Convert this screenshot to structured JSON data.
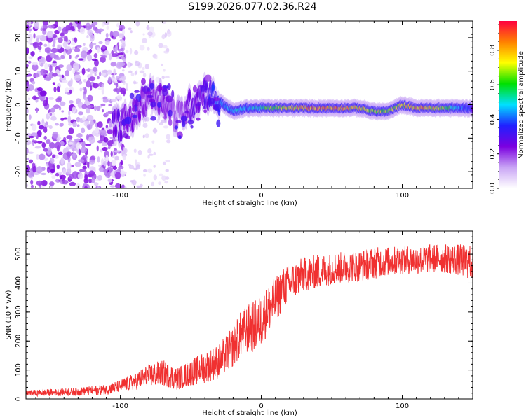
{
  "title": "S199.2026.077.02.36.R24",
  "chart_data": [
    {
      "type": "heatmap",
      "name": "spectrogram",
      "xlabel": "Height of straight line (km)",
      "ylabel": "Frequency (Hz)",
      "xlim": [
        -167,
        150
      ],
      "ylim": [
        -25,
        25
      ],
      "xticks": [
        -100,
        0,
        100
      ],
      "yticks": [
        -20,
        -10,
        0,
        10,
        20
      ],
      "colorbar": {
        "label": "Normalized spectral amplitude",
        "range": [
          0,
          0.97
        ],
        "ticks": [
          "0.0",
          "0.2",
          "0.4",
          "0.6",
          "0.8"
        ],
        "tick_values": [
          0.0,
          0.2,
          0.4,
          0.6,
          0.8
        ],
        "colors": [
          "#ffffff",
          "#c9a5f5",
          "#7b00e0",
          "#2020ff",
          "#00e0ff",
          "#00e000",
          "#ffff00",
          "#ff8000",
          "#ff0040"
        ]
      },
      "ridge_track": {
        "x": [
          -100,
          -90,
          -80,
          -70,
          -60,
          -50,
          -40,
          -30,
          -20,
          -10,
          0,
          10,
          20,
          30,
          40,
          50,
          60,
          70,
          80,
          90,
          100,
          110,
          120,
          130,
          140,
          150
        ],
        "y": [
          -6,
          -3,
          3,
          2,
          -4,
          0,
          4,
          1,
          -2,
          -1,
          -1,
          -1,
          -1,
          -1,
          -1,
          -1,
          -1,
          -1,
          -2,
          -2,
          0,
          -1,
          -1,
          -1,
          -1,
          -1
        ],
        "amplitude": [
          0.3,
          0.25,
          0.25,
          0.25,
          0.2,
          0.3,
          0.3,
          0.45,
          0.55,
          0.5,
          0.6,
          0.75,
          0.85,
          0.95,
          0.95,
          0.9,
          0.9,
          0.85,
          0.8,
          0.75,
          0.8,
          0.9,
          0.9,
          0.75,
          0.5,
          0.35
        ]
      }
    },
    {
      "type": "line",
      "name": "snr",
      "xlabel": "Height of straight line (km)",
      "ylabel": "SNR (10 * v/v)",
      "xlim": [
        -167,
        150
      ],
      "ylim": [
        0,
        580
      ],
      "xticks": [
        -100,
        0,
        100
      ],
      "yticks": [
        0,
        100,
        200,
        300,
        400,
        500
      ],
      "color": "#f03030",
      "series": [
        {
          "name": "SNR trend",
          "x": [
            -167,
            -150,
            -130,
            -110,
            -100,
            -90,
            -80,
            -70,
            -60,
            -50,
            -40,
            -30,
            -20,
            -15,
            -10,
            -5,
            0,
            5,
            10,
            15,
            20,
            30,
            40,
            50,
            60,
            70,
            80,
            90,
            100,
            110,
            120,
            130,
            140,
            150
          ],
          "values": [
            20,
            22,
            25,
            32,
            45,
            60,
            80,
            90,
            70,
            90,
            110,
            130,
            180,
            220,
            240,
            250,
            270,
            310,
            340,
            380,
            400,
            430,
            440,
            450,
            455,
            460,
            470,
            475,
            480,
            480,
            485,
            485,
            480,
            470
          ],
          "spread": [
            10,
            12,
            14,
            18,
            22,
            30,
            40,
            45,
            40,
            45,
            55,
            60,
            70,
            80,
            85,
            90,
            90,
            85,
            80,
            75,
            65,
            60,
            60,
            55,
            55,
            55,
            55,
            50,
            50,
            50,
            50,
            50,
            55,
            60
          ]
        }
      ]
    }
  ]
}
